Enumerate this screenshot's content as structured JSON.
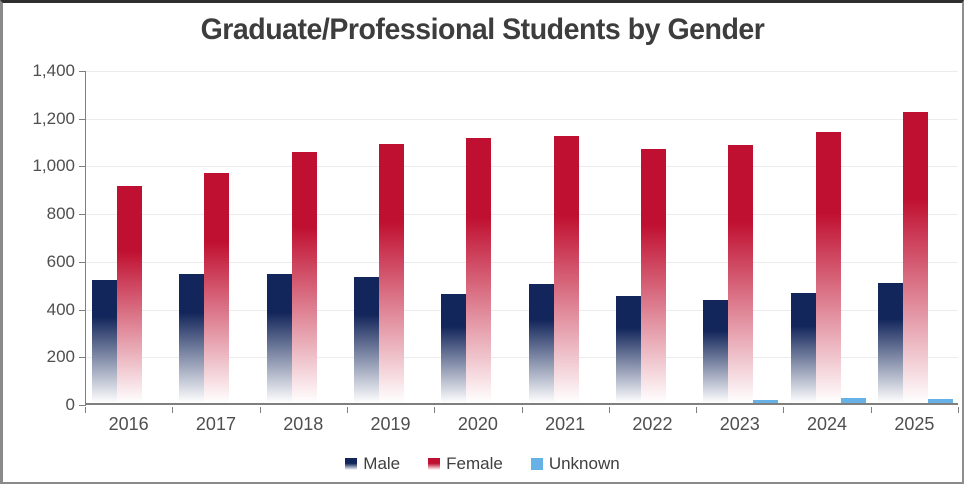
{
  "title": "Graduate/Professional Students by Gender",
  "chart_data": {
    "type": "bar",
    "title": "Graduate/Professional Students by Gender",
    "categories": [
      "2016",
      "2017",
      "2018",
      "2019",
      "2020",
      "2021",
      "2022",
      "2023",
      "2024",
      "2025"
    ],
    "series": [
      {
        "name": "Male",
        "color": "#13265B",
        "solid": false,
        "values": [
          515,
          540,
          540,
          530,
          455,
          500,
          450,
          430,
          460,
          505
        ]
      },
      {
        "name": "Female",
        "color": "#C01031",
        "solid": false,
        "values": [
          910,
          965,
          1050,
          1085,
          1110,
          1120,
          1065,
          1080,
          1135,
          1220
        ]
      },
      {
        "name": "Unknown",
        "color": "#66B2E6",
        "solid": true,
        "values": [
          0,
          0,
          0,
          0,
          0,
          0,
          0,
          12,
          20,
          18
        ]
      }
    ],
    "ylim": [
      0,
      1400
    ],
    "yticks": [
      {
        "value": 0,
        "label": "0"
      },
      {
        "value": 200,
        "label": "200"
      },
      {
        "value": 400,
        "label": "400"
      },
      {
        "value": 600,
        "label": "600"
      },
      {
        "value": 800,
        "label": "800"
      },
      {
        "value": 1000,
        "label": "1,000"
      },
      {
        "value": 1200,
        "label": "1,200"
      },
      {
        "value": 1400,
        "label": "1,400"
      }
    ],
    "grid": true,
    "legend_position": "bottom",
    "bar_style": "gradient fade to white at bottom"
  }
}
